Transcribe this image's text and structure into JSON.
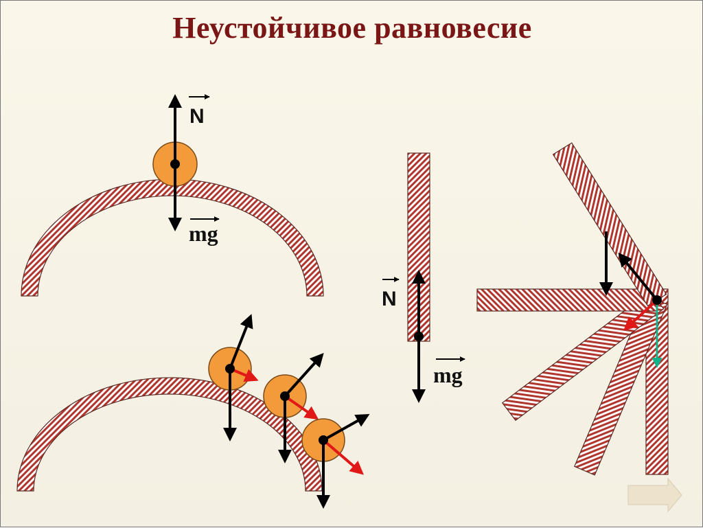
{
  "title": "Неустойчивое равновесие",
  "labels": {
    "normal_force": "N",
    "gravity_force": "mg"
  },
  "colors": {
    "title": "#7a1616",
    "ball_fill": "#f39a3a",
    "hatch_stripe": "#b0352d",
    "arrow_black": "#000000",
    "arrow_red": "#e01818",
    "arrow_green": "#12b38a"
  },
  "icons": {
    "next": "right-arrow-icon"
  }
}
